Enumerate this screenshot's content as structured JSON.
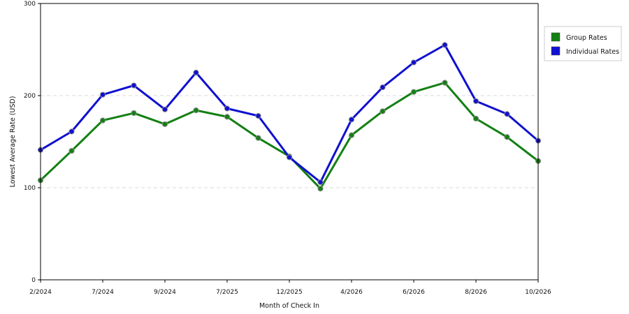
{
  "chart_data": {
    "type": "line",
    "title": "",
    "xlabel": "Month of Check In",
    "ylabel": "Lowest Average Rate (USD)",
    "ylim": [
      0,
      300
    ],
    "yticks": [
      0,
      100,
      200,
      300
    ],
    "grid": "horizontal-dashed",
    "legend_position": "right",
    "x_tick_labels": [
      "2/2024",
      "7/2024",
      "9/2024",
      "7/2025",
      "12/2025",
      "4/2026",
      "6/2026",
      "8/2026",
      "10/2026"
    ],
    "series": [
      {
        "name": "Group Rates",
        "color": "#138013",
        "values": [
          108,
          140,
          173,
          181,
          169,
          184,
          177,
          154,
          134,
          99,
          157,
          183,
          204,
          214,
          175,
          155,
          129
        ]
      },
      {
        "name": "Individual Rates",
        "color": "#1010d0",
        "values": [
          141,
          161,
          201,
          211,
          185,
          225,
          186,
          178,
          133,
          106,
          174,
          209,
          236,
          255,
          194,
          180,
          151
        ]
      }
    ]
  }
}
